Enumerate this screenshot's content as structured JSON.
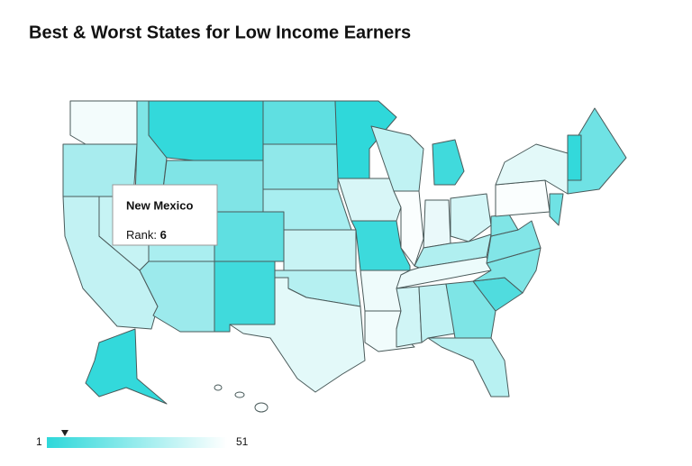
{
  "title": "Best & Worst States for Low Income Earners",
  "tooltip": {
    "state": "New Mexico",
    "label": "Rank:",
    "rank": 6
  },
  "legend": {
    "min": 1,
    "max": 51
  }
}
